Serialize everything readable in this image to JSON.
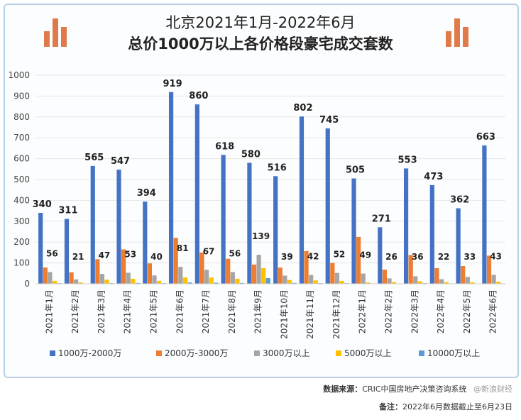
{
  "title_line1": "北京2021年1月-2022年6月",
  "title_line2": "总价1000万以上各价格段豪宅成交套数",
  "source_label": "数据来源：",
  "source_text": "CRIC中国房地产决策咨询系统",
  "watermark_text": "@新浪财经",
  "note_label": "备注：",
  "note_text": "2022年6月数据截止至6月23日",
  "colors": {
    "series": [
      "#4472c4",
      "#ed7d31",
      "#a5a5a5",
      "#ffc000",
      "#5b9bd5"
    ],
    "deco": "#e07a4a",
    "card_border": "#b9cde3",
    "grid": "#e6e6e6"
  },
  "chart_data": {
    "type": "bar",
    "ylim": [
      0,
      1000
    ],
    "yticks": [
      0,
      100,
      200,
      300,
      400,
      500,
      600,
      700,
      800,
      900,
      1000
    ],
    "categories": [
      "2021年1月",
      "2021年2月",
      "2021年3月",
      "2021年4月",
      "2021年5月",
      "2021年6月",
      "2021年7月",
      "2021年8月",
      "2021年9月",
      "2021年10月",
      "2021年11月",
      "2021年12月",
      "2022年1月",
      "2022年2月",
      "2022年3月",
      "2022年4月",
      "2022年5月",
      "2022年6月"
    ],
    "series": [
      {
        "name": "1000万-2000万",
        "values": [
          340,
          311,
          565,
          547,
          394,
          919,
          860,
          618,
          580,
          516,
          802,
          745,
          505,
          271,
          553,
          473,
          362,
          663
        ]
      },
      {
        "name": "2000万-3000万",
        "values": [
          78,
          55,
          118,
          165,
          98,
          220,
          150,
          120,
          92,
          78,
          157,
          100,
          225,
          68,
          138,
          75,
          85,
          135
        ]
      },
      {
        "name": "3000万以上",
        "values": [
          56,
          21,
          47,
          53,
          40,
          81,
          67,
          56,
          139,
          39,
          42,
          52,
          49,
          26,
          36,
          22,
          33,
          43
        ]
      },
      {
        "name": "5000万以上",
        "values": [
          14,
          6,
          20,
          24,
          14,
          30,
          30,
          24,
          75,
          18,
          16,
          14,
          6,
          8,
          12,
          8,
          7,
          10
        ]
      },
      {
        "name": "10000万以上",
        "values": [
          3,
          1,
          3,
          4,
          3,
          6,
          5,
          4,
          27,
          4,
          3,
          3,
          2,
          1,
          3,
          2,
          1,
          2
        ]
      }
    ],
    "bar_labels": {
      "series_0": [
        "340",
        "311",
        "565",
        "547",
        "394",
        "919",
        "860",
        "618",
        "580",
        "516",
        "802",
        "745",
        "505",
        "271",
        "553",
        "473",
        "362",
        "663"
      ],
      "series_2": [
        "56",
        "21",
        "47",
        "53",
        "40",
        "81",
        "67",
        "56",
        "139",
        "39",
        "42",
        "52",
        "49",
        "26",
        "36",
        "22",
        "33",
        "43"
      ]
    },
    "legend_position": "bottom",
    "grid": true
  }
}
